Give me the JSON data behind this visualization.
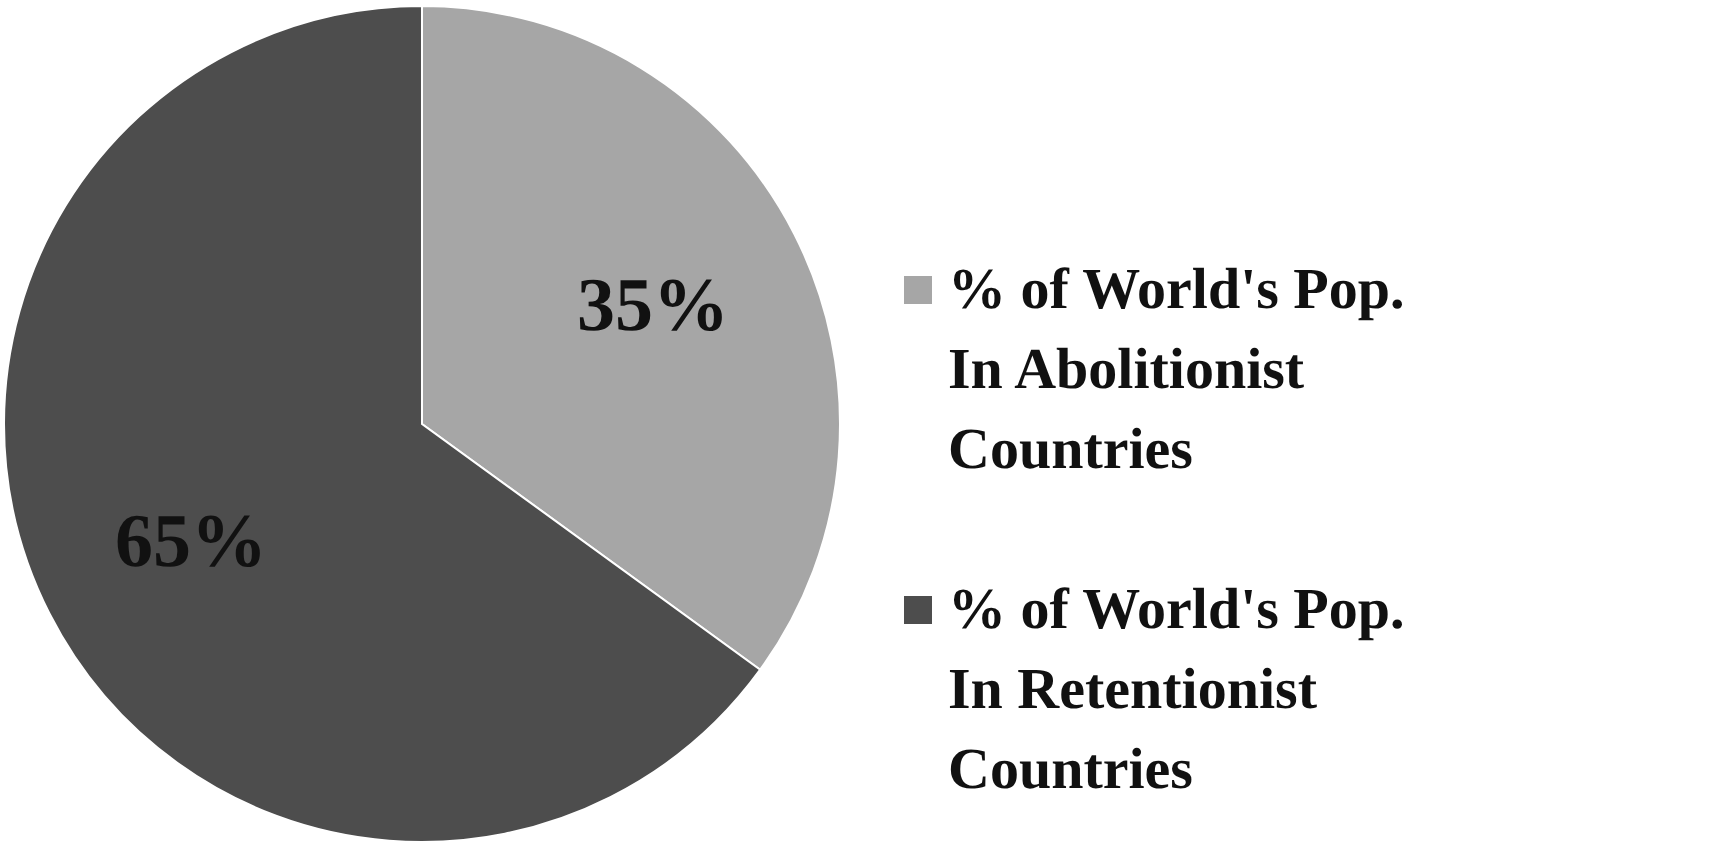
{
  "chart_data": {
    "type": "pie",
    "categories": [
      "% of World's Pop. In Abolitionist Countries",
      "% of World's Pop. In Retentionist Countries"
    ],
    "values": [
      35,
      65
    ],
    "colors": [
      "#a6a6a6",
      "#4d4d4d"
    ],
    "value_labels": [
      "35%",
      "65%"
    ],
    "legend": "right"
  }
}
